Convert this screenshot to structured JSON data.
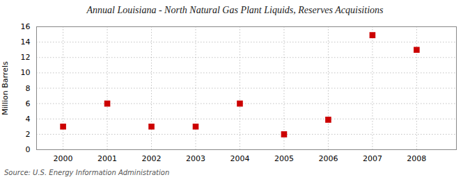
{
  "chart_data": {
    "type": "scatter",
    "title": "Annual Louisiana - North Natural Gas Plant Liquids, Reserves Acquisitions",
    "ylabel": "Million Barrels",
    "source": "Source: U.S. Energy Information Administration",
    "x": [
      2000,
      2001,
      2002,
      2003,
      2004,
      2005,
      2006,
      2007,
      2008
    ],
    "values": [
      3.0,
      6.0,
      3.0,
      3.0,
      6.0,
      2.0,
      3.9,
      14.9,
      13.0
    ],
    "color": "#cc0000",
    "marker": "square",
    "xlim": [
      1999.4,
      2008.9
    ],
    "xticks": [
      2000,
      2001,
      2002,
      2003,
      2004,
      2005,
      2006,
      2007,
      2008
    ],
    "ylim": [
      0,
      16
    ],
    "yticks": [
      0,
      2,
      4,
      6,
      8,
      10,
      12,
      14,
      16
    ],
    "grid": true
  }
}
